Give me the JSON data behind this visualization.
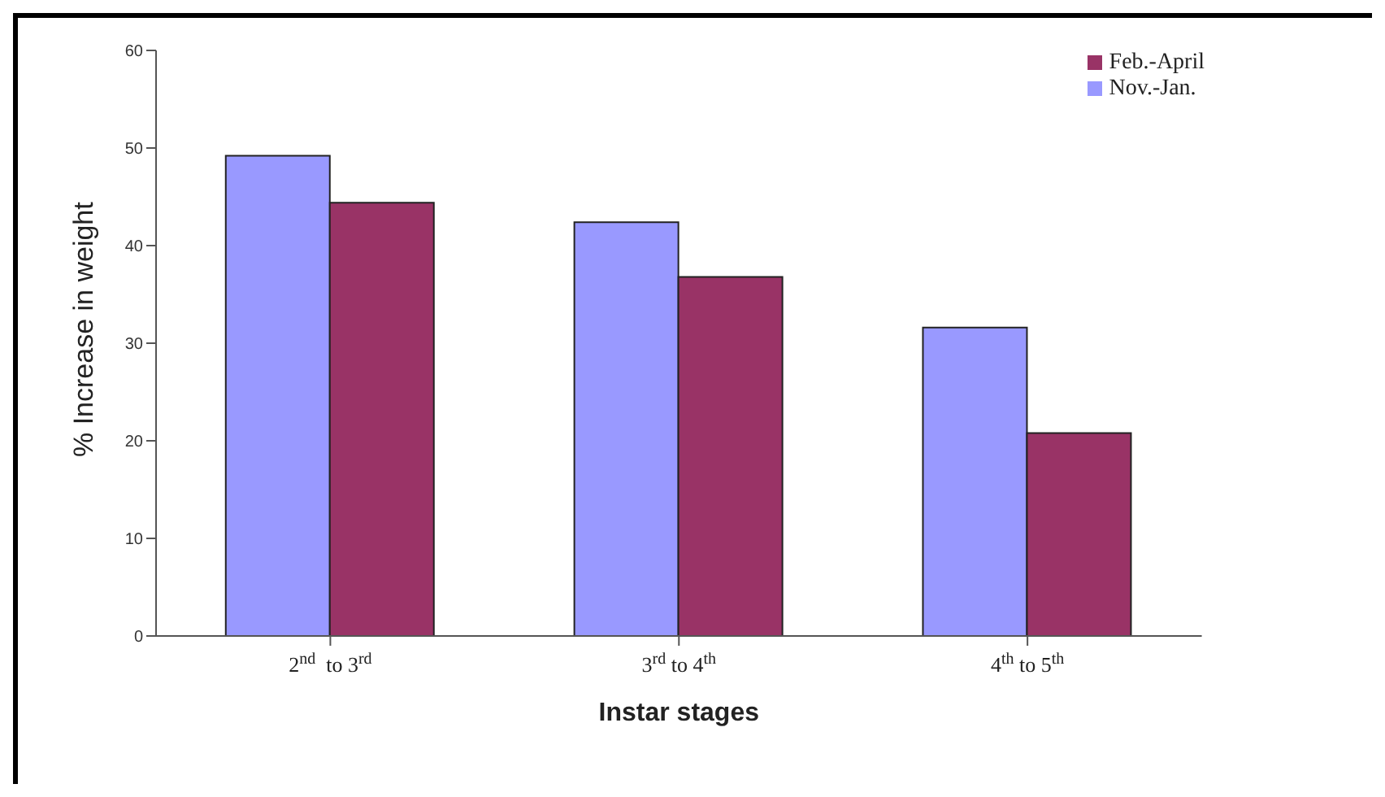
{
  "chart_data": {
    "type": "bar",
    "xlabel": "Instar stages",
    "ylabel": "% Increase in weight",
    "categories": [
      "2$^{nd}$  to 3$^{rd}$",
      "3$^{rd}$ to 4$^{th}$",
      "4$^{th}$ to 5$^{th}$"
    ],
    "series": [
      {
        "name": "Nov.-Jan.",
        "color": "#9999ff",
        "values": [
          49.2,
          42.4,
          31.6
        ]
      },
      {
        "name": "Feb.-April",
        "color": "#993366",
        "values": [
          44.4,
          36.8,
          20.8
        ]
      }
    ],
    "ylim": [
      0,
      60
    ],
    "yticks": [
      0,
      10,
      20,
      30,
      40,
      50,
      60
    ],
    "grid": false,
    "legend": "top right"
  }
}
